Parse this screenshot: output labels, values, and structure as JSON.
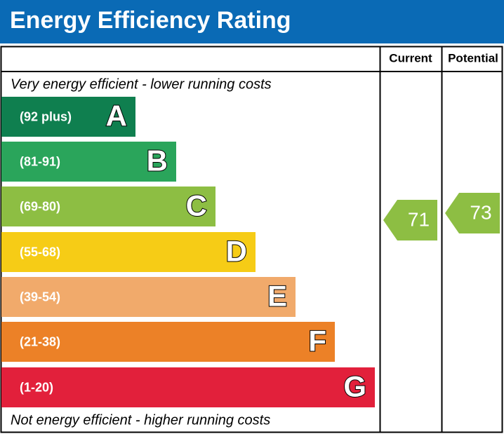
{
  "header": {
    "title": "Energy Efficiency Rating"
  },
  "table": {
    "columns": [
      "Current",
      "Potential"
    ],
    "top_note": "Very energy efficient - lower running costs",
    "bottom_note": "Not energy efficient - higher running costs",
    "bands": [
      {
        "range": "(92 plus)",
        "letter": "A",
        "color": "#0f7f4f"
      },
      {
        "range": "(81-91)",
        "letter": "B",
        "color": "#2aa55b"
      },
      {
        "range": "(69-80)",
        "letter": "C",
        "color": "#8dbe43"
      },
      {
        "range": "(55-68)",
        "letter": "D",
        "color": "#f6cc16"
      },
      {
        "range": "(39-54)",
        "letter": "E",
        "color": "#f1aa6b"
      },
      {
        "range": "(21-38)",
        "letter": "F",
        "color": "#ec8127"
      },
      {
        "range": "(1-20)",
        "letter": "G",
        "color": "#e2203b"
      }
    ],
    "current": {
      "value": 71,
      "color": "#8dbe43"
    },
    "potential": {
      "value": 73,
      "color": "#8dbe43"
    }
  }
}
